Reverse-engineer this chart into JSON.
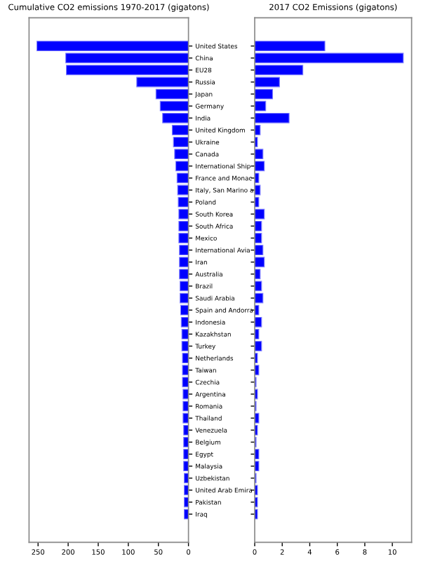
{
  "chart_data": [
    {
      "type": "bar",
      "orientation": "horizontal",
      "title": "Cumulative CO2 emissions 1970-2017 (gigatons)",
      "categories": [
        "United States",
        "China",
        "EU28",
        "Russia",
        "Japan",
        "Germany",
        "India",
        "United Kingdom",
        "Ukraine",
        "Canada",
        "International Ship",
        "France and Monac",
        "Italy, San Marino a",
        "Poland",
        "South Korea",
        "South Africa",
        "Mexico",
        "International Avia",
        "Iran",
        "Australia",
        "Brazil",
        "Saudi Arabia",
        "Spain and Andorra",
        "Indonesia",
        "Kazakhstan",
        "Turkey",
        "Netherlands",
        "Taiwan",
        "Czechia",
        "Argentina",
        "Romania",
        "Thailand",
        "Venezuela",
        "Belgium",
        "Egypt",
        "Malaysia",
        "Uzbekistan",
        "United Arab Emira",
        "Pakistan",
        "Iraq"
      ],
      "values": [
        252,
        204,
        203,
        86,
        54,
        47,
        43,
        27,
        25,
        23,
        21,
        19,
        18,
        17,
        16,
        16,
        16,
        15,
        15,
        15,
        14,
        14,
        13,
        12,
        11,
        11,
        10,
        10,
        10,
        9,
        9,
        9,
        8,
        8,
        8,
        8,
        7,
        7,
        7,
        7
      ],
      "color": "#0000ff",
      "xlim": [
        265,
        0
      ],
      "xticks": [
        0,
        50,
        100,
        150,
        200,
        250
      ],
      "grid": false
    },
    {
      "type": "bar",
      "orientation": "horizontal",
      "title": "2017 CO2 Emissions (gigatons)",
      "values": [
        5.1,
        10.8,
        3.5,
        1.8,
        1.3,
        0.8,
        2.5,
        0.4,
        0.2,
        0.6,
        0.7,
        0.3,
        0.4,
        0.3,
        0.7,
        0.5,
        0.5,
        0.6,
        0.7,
        0.4,
        0.5,
        0.6,
        0.3,
        0.5,
        0.3,
        0.5,
        0.2,
        0.3,
        0.1,
        0.2,
        0.1,
        0.3,
        0.2,
        0.1,
        0.3,
        0.3,
        0.1,
        0.2,
        0.2,
        0.2
      ],
      "color": "#0000ff",
      "xlim": [
        0,
        11.4
      ],
      "xticks": [
        0,
        2,
        4,
        6,
        8,
        10
      ],
      "tick_labels": "x",
      "grid": false
    }
  ]
}
